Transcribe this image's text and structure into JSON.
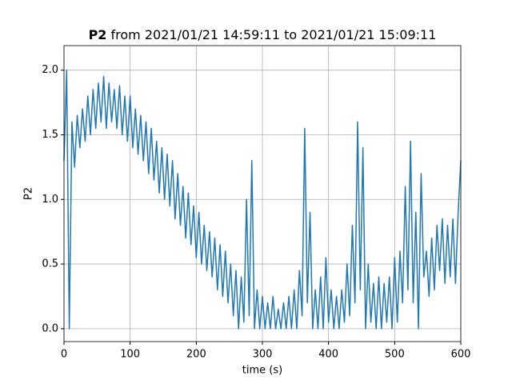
{
  "chart_data": {
    "type": "line",
    "title": {
      "bold": "P2",
      "text": "from 2021/01/21 14:59:11 to 2021/01/21 15:09:11"
    },
    "xlabel": "time (s)",
    "ylabel": "P2",
    "xlim": [
      0,
      600
    ],
    "xticks": [
      0,
      100,
      200,
      300,
      400,
      500,
      600
    ],
    "ylim": [
      -0.1,
      2.19
    ],
    "yticks": [
      {
        "value": 0,
        "label": "0.0"
      },
      {
        "value": 0.5,
        "label": "0.5"
      },
      {
        "value": 1,
        "label": "1.0"
      },
      {
        "value": 1.5,
        "label": "1.5"
      },
      {
        "value": 2,
        "label": "2.0"
      }
    ],
    "grid": true,
    "series": [
      {
        "name": "P2",
        "color": "#1f77b4",
        "x": [
          0,
          4,
          8,
          12,
          16,
          20,
          24,
          28,
          32,
          36,
          40,
          44,
          48,
          52,
          56,
          60,
          64,
          68,
          72,
          76,
          80,
          84,
          88,
          92,
          96,
          100,
          104,
          108,
          112,
          116,
          120,
          124,
          128,
          132,
          136,
          140,
          144,
          148,
          152,
          156,
          160,
          164,
          168,
          172,
          176,
          180,
          184,
          188,
          192,
          196,
          200,
          204,
          208,
          212,
          216,
          220,
          224,
          228,
          232,
          236,
          240,
          244,
          248,
          252,
          256,
          260,
          264,
          268,
          272,
          276,
          280,
          284,
          288,
          292,
          296,
          300,
          304,
          308,
          312,
          316,
          320,
          324,
          328,
          332,
          336,
          340,
          344,
          348,
          352,
          356,
          360,
          364,
          368,
          372,
          376,
          380,
          384,
          388,
          392,
          396,
          400,
          404,
          408,
          412,
          416,
          420,
          424,
          428,
          432,
          436,
          440,
          444,
          448,
          452,
          456,
          460,
          464,
          468,
          472,
          476,
          480,
          484,
          488,
          492,
          496,
          500,
          504,
          508,
          512,
          516,
          520,
          524,
          528,
          532,
          536,
          540,
          544,
          548,
          552,
          556,
          560,
          564,
          568,
          572,
          576,
          580,
          584,
          588,
          592,
          596,
          600
        ],
        "values": [
          1.3,
          2.0,
          0.0,
          1.6,
          1.25,
          1.65,
          1.4,
          1.7,
          1.45,
          1.8,
          1.5,
          1.85,
          1.55,
          1.9,
          1.6,
          1.95,
          1.55,
          1.9,
          1.6,
          1.85,
          1.55,
          1.88,
          1.5,
          1.8,
          1.45,
          1.8,
          1.4,
          1.7,
          1.35,
          1.65,
          1.3,
          1.6,
          1.2,
          1.55,
          1.15,
          1.45,
          1.05,
          1.4,
          1.0,
          1.35,
          0.95,
          1.3,
          0.85,
          1.2,
          0.8,
          1.1,
          0.7,
          1.05,
          0.65,
          0.95,
          0.55,
          0.9,
          0.5,
          0.8,
          0.45,
          0.75,
          0.4,
          0.7,
          0.3,
          0.65,
          0.25,
          0.6,
          0.2,
          0.5,
          0.1,
          0.45,
          0.0,
          0.4,
          0.05,
          1.0,
          0.1,
          1.3,
          0.0,
          0.3,
          0.0,
          0.25,
          0.0,
          0.2,
          0.0,
          0.25,
          0.0,
          0.15,
          0.0,
          0.2,
          0.0,
          0.25,
          0.0,
          0.3,
          0.0,
          0.45,
          0.1,
          1.55,
          0.2,
          0.9,
          0.0,
          0.3,
          0.0,
          0.4,
          0.0,
          0.55,
          0.05,
          0.3,
          0.0,
          0.25,
          0.0,
          0.3,
          0.05,
          0.5,
          0.1,
          0.8,
          0.2,
          1.6,
          0.3,
          1.4,
          0.0,
          0.5,
          0.05,
          0.35,
          0.0,
          0.4,
          0.0,
          0.35,
          0.05,
          0.4,
          0.0,
          0.55,
          0.05,
          0.6,
          0.2,
          1.1,
          0.3,
          1.45,
          0.2,
          0.9,
          0.0,
          1.2,
          0.4,
          0.6,
          0.25,
          0.7,
          0.3,
          0.8,
          0.45,
          0.85,
          0.35,
          0.8,
          0.4,
          0.85,
          0.35,
          0.9,
          1.3
        ]
      }
    ]
  }
}
